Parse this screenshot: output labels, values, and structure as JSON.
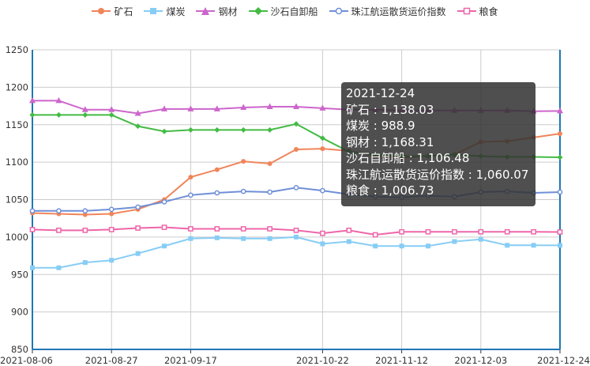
{
  "chart_data": {
    "type": "line",
    "x": [
      "2021-08-06",
      "2021-08-13",
      "2021-08-20",
      "2021-08-27",
      "2021-09-03",
      "2021-09-10",
      "2021-09-17",
      "2021-09-24",
      "2021-10-01",
      "2021-10-08",
      "2021-10-15",
      "2021-10-22",
      "2021-10-29",
      "2021-11-05",
      "2021-11-12",
      "2021-11-19",
      "2021-11-26",
      "2021-12-03",
      "2021-12-10",
      "2021-12-17",
      "2021-12-24"
    ],
    "x_tick_labels": [
      "2021-08-06",
      "2021-08-27",
      "2021-09-17",
      "2021-10-22",
      "2021-11-12",
      "2021-12-03",
      "2021-12-24"
    ],
    "ylim": [
      850,
      1250
    ],
    "y_ticks": [
      850,
      900,
      950,
      1000,
      1050,
      1100,
      1150,
      1200,
      1250
    ],
    "grid": true,
    "legend_position": "top-center",
    "series": [
      {
        "name": "矿石",
        "color": "#f0855a",
        "marker": "circle",
        "values": [
          1032,
          1031,
          1030,
          1031,
          1037,
          1050,
          1080,
          1090,
          1101,
          1098,
          1117,
          1118,
          1115,
          1108,
          1106,
          1108,
          1110,
          1127,
          1128,
          1133,
          1138.03
        ]
      },
      {
        "name": "煤炭",
        "color": "#87cdf5",
        "marker": "square",
        "values": [
          959,
          959,
          966,
          969,
          978,
          988,
          998,
          999,
          998,
          998,
          1000,
          991,
          994,
          988,
          988,
          988,
          994,
          997,
          989,
          989,
          988.9
        ]
      },
      {
        "name": "钢材",
        "color": "#cc66cc",
        "marker": "triangle",
        "values": [
          1182,
          1182,
          1170,
          1170,
          1165,
          1171,
          1171,
          1171,
          1173,
          1174,
          1174,
          1172,
          1170,
          1170,
          1169,
          1169,
          1169,
          1169,
          1169,
          1168,
          1168.31
        ]
      },
      {
        "name": "沙石自卸船",
        "color": "#44bb44",
        "marker": "diamond",
        "values": [
          1163,
          1163,
          1163,
          1163,
          1148,
          1141,
          1143,
          1143,
          1143,
          1143,
          1151,
          1132,
          1114,
          1110,
          1108,
          1108,
          1110,
          1108,
          1107,
          1107,
          1106.48
        ]
      },
      {
        "name": "珠江航运散货运价指数",
        "color": "#6f8fd8",
        "marker": "hollow-circle",
        "values": [
          1035,
          1035,
          1035,
          1037,
          1040,
          1047,
          1056,
          1059,
          1061,
          1060,
          1066,
          1062,
          1057,
          1054,
          1053,
          1055,
          1054,
          1060,
          1061,
          1059,
          1060.07
        ]
      },
      {
        "name": "粮食",
        "color": "#ee66aa",
        "marker": "hollow-square",
        "values": [
          1010,
          1009,
          1009,
          1010,
          1012,
          1013,
          1011,
          1011,
          1011,
          1011,
          1009,
          1005,
          1009,
          1003,
          1007,
          1007,
          1007,
          1007,
          1007,
          1007,
          1006.73
        ]
      }
    ],
    "tooltip": {
      "title": "2021-12-24",
      "lines": [
        "矿石 : 1,138.03",
        "煤炭 : 988.9",
        "钢材 : 1,168.31",
        "沙石自卸船 : 1,106.48",
        "珠江航运散货运价指数 : 1,060.07",
        "粮食 : 1,006.73"
      ]
    }
  }
}
